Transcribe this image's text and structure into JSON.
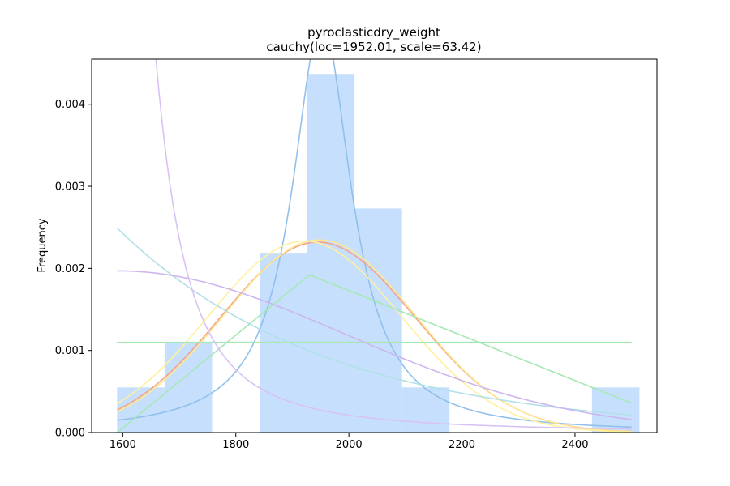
{
  "chart_data": {
    "type": "bar",
    "title": "pyroclasticdry_weight",
    "subtitle": "cauchy(loc=1952.01, scale=63.42)",
    "xlabel": "",
    "ylabel": "Frequency",
    "xlim": [
      1545,
      2545
    ],
    "ylim": [
      0,
      0.00455
    ],
    "grid": false,
    "x_ticks": [
      {
        "value": 1600,
        "label": "1600"
      },
      {
        "value": 1800,
        "label": "1800"
      },
      {
        "value": 2000,
        "label": "2000"
      },
      {
        "value": 2200,
        "label": "2200"
      },
      {
        "value": 2400,
        "label": "2400"
      }
    ],
    "y_ticks": [
      {
        "value": 0,
        "label": "0.000"
      },
      {
        "value": 0.001,
        "label": "0.001"
      },
      {
        "value": 0.002,
        "label": "0.002"
      },
      {
        "value": 0.003,
        "label": "0.003"
      },
      {
        "value": 0.004,
        "label": "0.004"
      }
    ],
    "histogram": {
      "color": "#c6dffc",
      "bins": [
        {
          "x0": 1590,
          "x1": 1674,
          "value": 0.00055
        },
        {
          "x0": 1674,
          "x1": 1758,
          "value": 0.0011
        },
        {
          "x0": 1758,
          "x1": 1842,
          "value": 0.0
        },
        {
          "x0": 1842,
          "x1": 1926,
          "value": 0.00219
        },
        {
          "x0": 1926,
          "x1": 2010,
          "value": 0.00437
        },
        {
          "x0": 2010,
          "x1": 2094,
          "value": 0.00273
        },
        {
          "x0": 2094,
          "x1": 2178,
          "value": 0.00055
        },
        {
          "x0": 2178,
          "x1": 2262,
          "value": 0.0
        },
        {
          "x0": 2262,
          "x1": 2346,
          "value": 0.0
        },
        {
          "x0": 2346,
          "x1": 2430,
          "value": 0.0
        },
        {
          "x0": 2430,
          "x1": 2514,
          "value": 0.00055
        }
      ]
    },
    "curves": [
      {
        "kind": "cauchy",
        "loc": 1952.01,
        "scale": 63.42,
        "color": "#91c0ec"
      },
      {
        "kind": "normal",
        "loc": 1945,
        "scale": 172,
        "color": "#f5a38e"
      },
      {
        "kind": "normal",
        "loc": 1922,
        "scale": 171,
        "color": "#fff0a0"
      },
      {
        "kind": "normal",
        "loc": 1948,
        "scale": 170,
        "color": "#fde98d"
      },
      {
        "kind": "triangular",
        "left": 1590,
        "mode": 1930,
        "right": 2631,
        "color": "#a6e8b4"
      },
      {
        "kind": "uniform",
        "left": 1590,
        "right": 2500,
        "color": "#a6e8b4"
      },
      {
        "kind": "exponential",
        "loc": 1560,
        "scale": 370,
        "color": "#b2e0e8"
      },
      {
        "kind": "halfnormal",
        "loc": 1590,
        "scale": 405,
        "color": "#cdb5ef"
      },
      {
        "kind": "halfcauchy",
        "loc": 1590,
        "scale": 57,
        "color": "#d8c2f5"
      }
    ]
  }
}
